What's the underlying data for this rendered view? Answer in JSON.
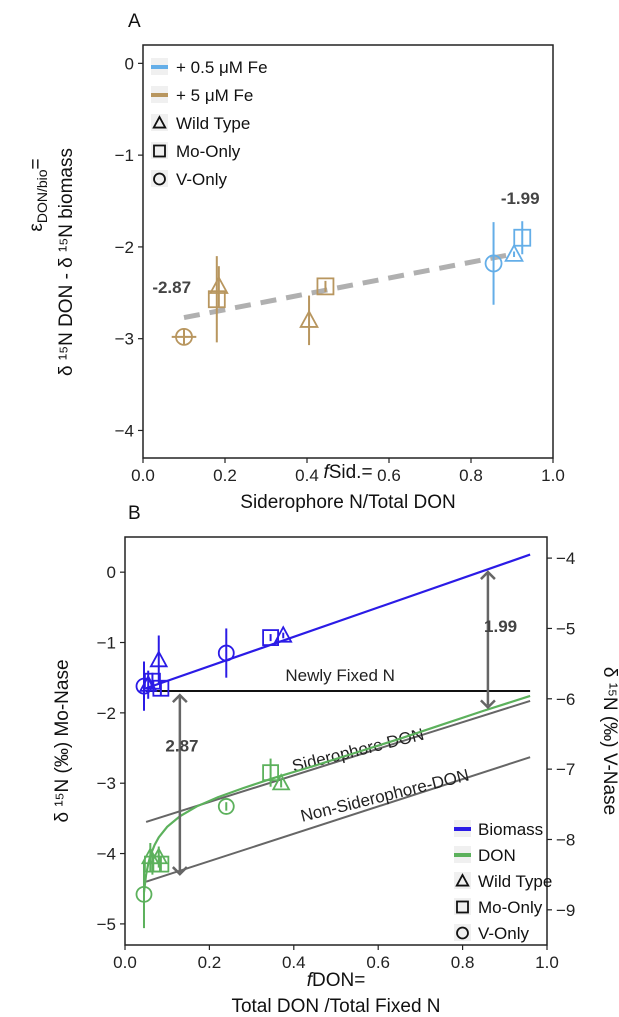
{
  "chart_data": [
    {
      "type": "scatter",
      "panel": "A",
      "xlabel_prefix": "f",
      "xlabel_line1": "Sid.=",
      "xlabel_line2": "Siderophore N/Total DON",
      "ylabel_top": "ε",
      "ylabel_top_sub": "DON/bio",
      "ylabel_top_eq": "=",
      "ylabel_main": "δ ¹⁵N DON - δ ¹⁵N biomass",
      "xlim": [
        0.0,
        1.0
      ],
      "ylim": [
        -4.3,
        0.2
      ],
      "xticks": [
        "0.0",
        "0.2",
        "0.4",
        "0.6",
        "0.8",
        "1.0"
      ],
      "yticks": [
        "0",
        "−1",
        "−2",
        "−3",
        "−4"
      ],
      "grid": false,
      "legend": {
        "placement": "top-left",
        "colors": [
          {
            "label": "+ 0.5 μM Fe",
            "color": "#64aee8"
          },
          {
            "label": "+ 5 μM Fe",
            "color": "#b8965f"
          }
        ],
        "shapes": [
          {
            "label": "Wild Type",
            "shape": "triangle"
          },
          {
            "label": "Mo-Only",
            "shape": "square"
          },
          {
            "label": "V-Only",
            "shape": "circle"
          }
        ]
      },
      "trend": {
        "x": [
          0.1,
          0.9
        ],
        "y": [
          -2.77,
          -2.08
        ],
        "color": "#b0b0b0",
        "style": "dashed"
      },
      "annotations": [
        {
          "text": "-2.87",
          "x": 0.07,
          "y": -2.5
        },
        {
          "text": "-1.99",
          "x": 0.92,
          "y": -1.53
        }
      ],
      "points": [
        {
          "x": 0.1,
          "y": -2.98,
          "yerr_low": 0.09,
          "yerr_high": 0.09,
          "xerr": 0.03,
          "shape": "circle",
          "color": "#b8965f"
        },
        {
          "x": 0.18,
          "y": -2.57,
          "yerr_low": 0.47,
          "yerr_high": 0.47,
          "xerr": 0.0,
          "shape": "square",
          "color": "#b8965f"
        },
        {
          "x": 0.185,
          "y": -2.43,
          "yerr_low": 0.22,
          "yerr_high": 0.22,
          "xerr": 0.0,
          "shape": "triangle",
          "color": "#b8965f"
        },
        {
          "x": 0.405,
          "y": -2.8,
          "yerr_low": 0.27,
          "yerr_high": 0.27,
          "xerr": 0.0,
          "shape": "triangle",
          "color": "#b8965f"
        },
        {
          "x": 0.445,
          "y": -2.43,
          "yerr_low": 0.06,
          "yerr_high": 0.06,
          "xerr": 0.0,
          "shape": "square",
          "color": "#b8965f"
        },
        {
          "x": 0.855,
          "y": -2.18,
          "yerr_low": 0.45,
          "yerr_high": 0.45,
          "xerr": 0.0,
          "shape": "circle",
          "color": "#64aee8"
        },
        {
          "x": 0.905,
          "y": -2.08,
          "yerr_low": 0.03,
          "yerr_high": 0.03,
          "xerr": 0.0,
          "shape": "triangle",
          "color": "#64aee8"
        },
        {
          "x": 0.925,
          "y": -1.9,
          "yerr_low": 0.18,
          "yerr_high": 0.18,
          "xerr": 0.0,
          "shape": "square",
          "color": "#64aee8"
        }
      ]
    },
    {
      "type": "scatter",
      "panel": "B",
      "xlabel_prefix": "f",
      "xlabel_line1": "DON=",
      "xlabel_line2": "Total DON /Total Fixed N",
      "ylabel_left": "δ ¹⁵N (‰) Mo-Nase",
      "ylabel_right": "δ ¹⁵N (‰) V-Nase",
      "xlim": [
        0.0,
        1.0
      ],
      "ylim": [
        -5.3,
        0.5
      ],
      "y2offset": -4.2,
      "xticks": [
        "0.0",
        "0.2",
        "0.4",
        "0.6",
        "0.8",
        "1.0"
      ],
      "yticks": [
        "0",
        "−1",
        "−2",
        "−3",
        "−4",
        "−5"
      ],
      "y2ticks": [
        "−4",
        "−5",
        "−6",
        "−7",
        "−8",
        "−9"
      ],
      "grid": false,
      "legend": {
        "placement": "bottom-right",
        "colors": [
          {
            "label": "Biomass",
            "color": "#2b1be6"
          },
          {
            "label": "DON",
            "color": "#5cb15c"
          }
        ],
        "shapes": [
          {
            "label": "Wild Type",
            "shape": "triangle"
          },
          {
            "label": "Mo-Only",
            "shape": "square"
          },
          {
            "label": "V-Only",
            "shape": "circle"
          }
        ]
      },
      "lines": [
        {
          "label": "Newly Fixed N",
          "x": [
            0.05,
            0.96
          ],
          "y": [
            -1.69,
            -1.69
          ],
          "color": "#111111",
          "label_x": 0.38,
          "label_y": -1.55,
          "angle": 0
        },
        {
          "label": "Siderophore DON",
          "x": [
            0.05,
            0.96
          ],
          "y": [
            -3.55,
            -1.83
          ],
          "color": "#666666",
          "label_x": 0.4,
          "label_y": -2.84,
          "angle": -14
        },
        {
          "label": "Non-Siderophore-DON",
          "x": [
            0.05,
            0.96
          ],
          "y": [
            -4.4,
            -2.63
          ],
          "color": "#666666",
          "label_x": 0.42,
          "label_y": -3.55,
          "angle": -14
        },
        {
          "label": "",
          "x": [
            0.05,
            0.96
          ],
          "y": [
            -1.65,
            0.25
          ],
          "color": "#2b1be6",
          "label_x": 0,
          "label_y": 0,
          "angle": 0
        }
      ],
      "don_curve": {
        "x": [
          0.045,
          0.05,
          0.055,
          0.06,
          0.07,
          0.08,
          0.1,
          0.13,
          0.17,
          0.22,
          0.28,
          0.35,
          0.45,
          0.55,
          0.65,
          0.75,
          0.85,
          0.96
        ],
        "y": [
          -4.55,
          -4.3,
          -4.15,
          -4.03,
          -3.88,
          -3.77,
          -3.62,
          -3.47,
          -3.33,
          -3.2,
          -3.07,
          -2.93,
          -2.75,
          -2.56,
          -2.37,
          -2.17,
          -1.97,
          -1.76
        ],
        "color": "#5cb15c"
      },
      "annotations": [
        {
          "text": "2.87",
          "x": 0.135,
          "y": -2.55
        },
        {
          "text": "1.99",
          "x": 0.89,
          "y": -0.85
        }
      ],
      "arrows": [
        {
          "x": 0.13,
          "y_from": -1.72,
          "y_to": -4.32
        },
        {
          "x": 0.86,
          "y_from": 0.03,
          "y_to": -1.95
        }
      ],
      "points": [
        {
          "x": 0.045,
          "y": -1.62,
          "yerr_low": 0.35,
          "yerr_high": 0.35,
          "shape": "circle",
          "color": "#2b1be6"
        },
        {
          "x": 0.055,
          "y": -1.6,
          "yerr_low": 0.2,
          "yerr_high": 0.2,
          "shape": "triangle",
          "color": "#2b1be6"
        },
        {
          "x": 0.065,
          "y": -1.55,
          "yerr_low": 0.12,
          "yerr_high": 0.12,
          "shape": "square",
          "color": "#2b1be6"
        },
        {
          "x": 0.08,
          "y": -1.25,
          "yerr_low": 0.35,
          "yerr_high": 0.35,
          "shape": "triangle",
          "color": "#2b1be6"
        },
        {
          "x": 0.085,
          "y": -1.65,
          "yerr_low": 0.1,
          "yerr_high": 0.1,
          "shape": "square",
          "color": "#2b1be6"
        },
        {
          "x": 0.24,
          "y": -1.15,
          "yerr_low": 0.35,
          "yerr_high": 0.35,
          "shape": "circle",
          "color": "#2b1be6"
        },
        {
          "x": 0.345,
          "y": -0.93,
          "yerr_low": 0.05,
          "yerr_high": 0.05,
          "shape": "square",
          "color": "#2b1be6"
        },
        {
          "x": 0.375,
          "y": -0.9,
          "yerr_low": 0.04,
          "yerr_high": 0.04,
          "shape": "triangle",
          "color": "#2b1be6"
        },
        {
          "x": 0.045,
          "y": -4.58,
          "yerr_low": 0.48,
          "yerr_high": 0.48,
          "shape": "circle",
          "color": "#5cb15c"
        },
        {
          "x": 0.06,
          "y": -4.05,
          "yerr_low": 0.2,
          "yerr_high": 0.2,
          "shape": "triangle",
          "color": "#5cb15c"
        },
        {
          "x": 0.065,
          "y": -4.15,
          "yerr_low": 0.15,
          "yerr_high": 0.15,
          "shape": "square",
          "color": "#5cb15c"
        },
        {
          "x": 0.08,
          "y": -4.05,
          "yerr_low": 0.15,
          "yerr_high": 0.15,
          "shape": "triangle",
          "color": "#5cb15c"
        },
        {
          "x": 0.085,
          "y": -4.15,
          "yerr_low": 0.1,
          "yerr_high": 0.1,
          "shape": "square",
          "color": "#5cb15c"
        },
        {
          "x": 0.24,
          "y": -3.33,
          "yerr_low": 0.06,
          "yerr_high": 0.06,
          "shape": "circle",
          "color": "#5cb15c"
        },
        {
          "x": 0.345,
          "y": -2.85,
          "yerr_low": 0.2,
          "yerr_high": 0.2,
          "shape": "square",
          "color": "#5cb15c"
        },
        {
          "x": 0.37,
          "y": -3.0,
          "yerr_low": 0.06,
          "yerr_high": 0.06,
          "shape": "triangle",
          "color": "#5cb15c"
        }
      ]
    }
  ]
}
